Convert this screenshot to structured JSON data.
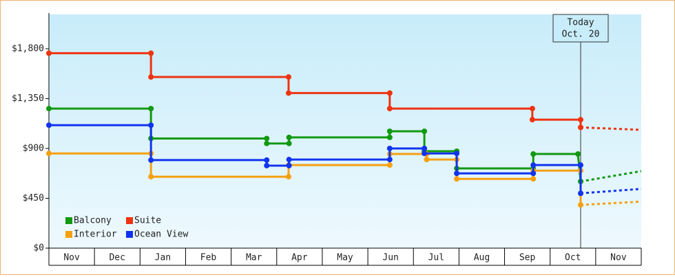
{
  "chart_data": {
    "type": "step",
    "categories": [
      "Nov",
      "Dec",
      "Jan",
      "Feb",
      "Mar",
      "Apr",
      "May",
      "Jun",
      "Jul",
      "Aug",
      "Sep",
      "Oct",
      "Nov"
    ],
    "xlim": [
      0,
      13
    ],
    "ylim": [
      0,
      2110
    ],
    "yticks": [
      {
        "value": 0,
        "label": "$0"
      },
      {
        "value": 450,
        "label": "$450"
      },
      {
        "value": 900,
        "label": "$900"
      },
      {
        "value": 1350,
        "label": "$1,350"
      },
      {
        "value": 1800,
        "label": "$1,800"
      }
    ],
    "today": {
      "x": 11.67,
      "label": "Today",
      "date": "Oct. 20"
    },
    "series": [
      {
        "name": "Balcony",
        "color": "#119911",
        "x": [
          0,
          2.24,
          2.24,
          4.78,
          4.78,
          5.27,
          5.27,
          7.48,
          7.48,
          8.24,
          8.24,
          8.95,
          8.95,
          10.63,
          10.63,
          11.61,
          11.67
        ],
        "values": [
          1260,
          1260,
          990,
          990,
          945,
          945,
          1000,
          1000,
          1055,
          1055,
          875,
          875,
          720,
          720,
          850,
          850,
          602
        ],
        "forecast_x": [
          11.67,
          13
        ],
        "forecast_values": [
          602,
          695
        ]
      },
      {
        "name": "Suite",
        "color": "#ee3311",
        "x": [
          0,
          2.24,
          2.24,
          5.26,
          5.26,
          7.48,
          7.48,
          10.61,
          10.61,
          11.67,
          11.67
        ],
        "values": [
          1760,
          1760,
          1545,
          1545,
          1400,
          1400,
          1260,
          1260,
          1160,
          1160,
          1090
        ],
        "forecast_x": [
          11.67,
          13
        ],
        "forecast_values": [
          1090,
          1068
        ]
      },
      {
        "name": "Interior",
        "color": "#f5a010",
        "x": [
          0,
          2.24,
          2.24,
          5.26,
          5.26,
          7.48,
          7.48,
          8.29,
          8.29,
          8.95,
          8.95,
          10.63,
          10.63,
          11.67,
          11.67
        ],
        "values": [
          855,
          855,
          645,
          645,
          750,
          750,
          850,
          850,
          800,
          800,
          625,
          625,
          700,
          700,
          390
        ],
        "forecast_x": [
          11.67,
          13
        ],
        "forecast_values": [
          390,
          420
        ]
      },
      {
        "name": "Ocean View",
        "color": "#1133ee",
        "x": [
          0,
          2.24,
          2.24,
          4.78,
          4.78,
          5.27,
          5.27,
          7.48,
          7.48,
          8.24,
          8.24,
          8.95,
          8.95,
          10.63,
          10.63,
          11.67,
          11.67
        ],
        "values": [
          1110,
          1110,
          795,
          795,
          745,
          745,
          800,
          800,
          900,
          900,
          855,
          855,
          675,
          675,
          750,
          750,
          495
        ],
        "forecast_x": [
          11.67,
          13
        ],
        "forecast_values": [
          495,
          535
        ]
      }
    ]
  }
}
